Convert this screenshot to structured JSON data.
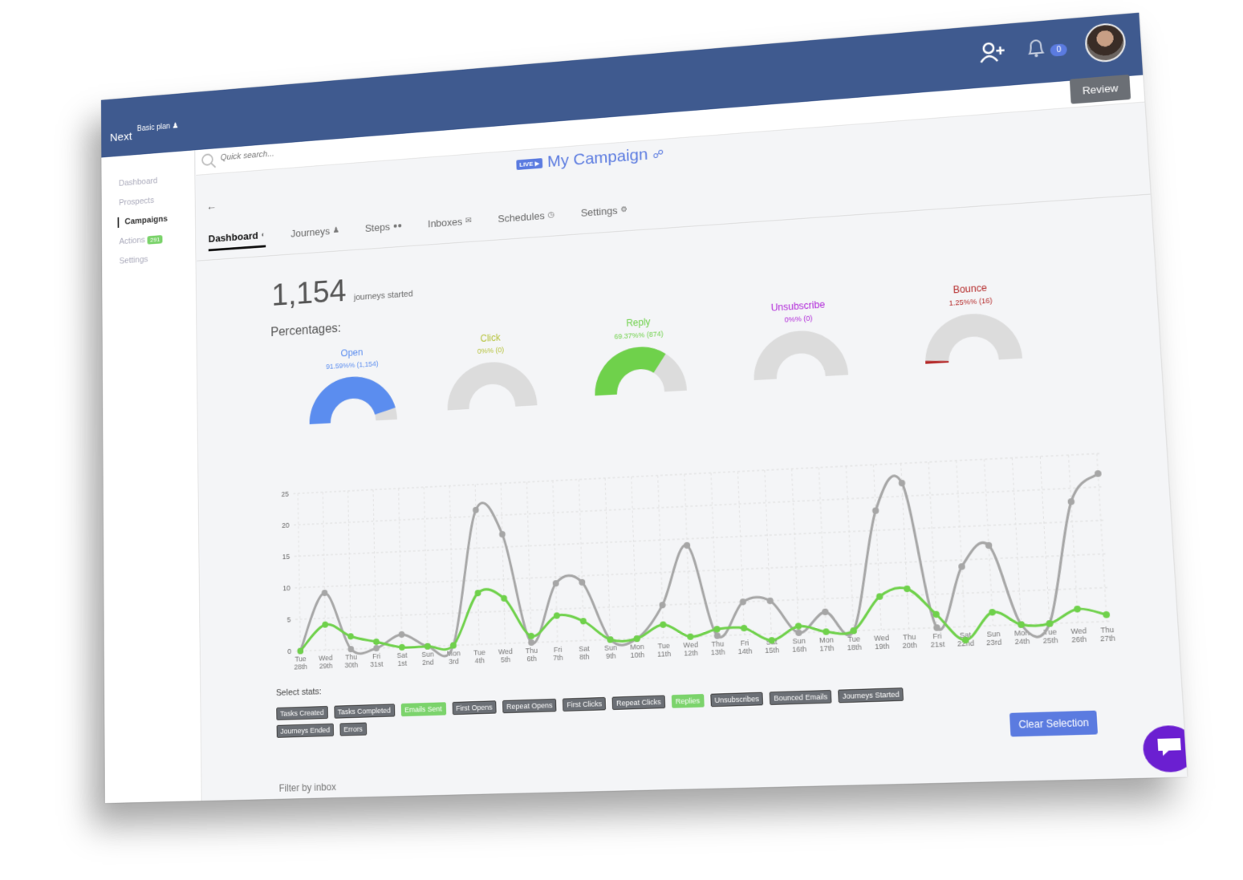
{
  "app": {
    "brand": "Next",
    "plan": "Basic plan",
    "notifications": "0"
  },
  "sidebar": {
    "items": [
      {
        "label": "Dashboard",
        "active": false
      },
      {
        "label": "Prospects",
        "active": false
      },
      {
        "label": "Campaigns",
        "active": true
      },
      {
        "label": "Actions",
        "active": false,
        "badge": "291"
      },
      {
        "label": "Settings",
        "active": false
      }
    ]
  },
  "search": {
    "placeholder": "Quick search..."
  },
  "toolbar": {
    "review_label": "Review"
  },
  "campaign": {
    "live_label": "LIVE",
    "title": "My Campaign"
  },
  "tabs": [
    {
      "label": "Dashboard",
      "icon": "gauge-icon",
      "active": true
    },
    {
      "label": "Journeys",
      "icon": "walker-icon",
      "active": false
    },
    {
      "label": "Steps",
      "icon": "footsteps-icon",
      "active": false
    },
    {
      "label": "Inboxes",
      "icon": "envelope-icon",
      "active": false
    },
    {
      "label": "Schedules",
      "icon": "clock-icon",
      "active": false
    },
    {
      "label": "Settings",
      "icon": "gear-icon",
      "active": false
    }
  ],
  "stats": {
    "journeys_count": "1,154",
    "journeys_label": "journeys started",
    "percentages_title": "Percentages:"
  },
  "gauges": [
    {
      "name": "Open",
      "value_text": "91.59%% (1,154)",
      "fraction": 0.9159,
      "color": "#5b8def"
    },
    {
      "name": "Click",
      "value_text": "0%% (0)",
      "fraction": 0,
      "color": "#b5c23a"
    },
    {
      "name": "Reply",
      "value_text": "69.37%% (874)",
      "fraction": 0.6937,
      "color": "#6fd14b"
    },
    {
      "name": "Unsubscribe",
      "value_text": "0%% (0)",
      "fraction": 0,
      "color": "#b026d8"
    },
    {
      "name": "Bounce",
      "value_text": "1.25%% (16)",
      "fraction": 0.0125,
      "color": "#b52a2a"
    }
  ],
  "chart_data": {
    "type": "line",
    "categories": [
      "Tue 28th",
      "Wed 29th",
      "Thu 30th",
      "Fri 31st",
      "Sat 1st",
      "Sun 2nd",
      "Mon 3rd",
      "Tue 4th",
      "Wed 5th",
      "Thu 6th",
      "Fri 7th",
      "Sat 8th",
      "Sun 9th",
      "Mon 10th",
      "Tue 11th",
      "Wed 12th",
      "Thu 13th",
      "Fri 14th",
      "Sat 15th",
      "Sun 16th",
      "Mon 17th",
      "Tue 18th",
      "Wed 19th",
      "Thu 20th",
      "Fri 21st",
      "Sat 22nd",
      "Sun 23rd",
      "Mon 24th",
      "Tue 25th",
      "Wed 26th",
      "Thu 27th"
    ],
    "ylim": [
      0,
      25
    ],
    "yticks": [
      0,
      5,
      10,
      15,
      20,
      25
    ],
    "grid": true,
    "series": [
      {
        "name": "",
        "color": "#a6a6a6",
        "values": [
          0,
          9,
          0,
          0,
          2,
          0,
          0,
          21,
          17,
          0,
          9,
          9,
          0,
          0,
          5,
          14,
          0,
          5,
          5,
          0,
          3,
          0,
          18,
          22,
          0,
          9,
          12,
          0,
          0,
          18,
          22
        ]
      },
      {
        "name": "",
        "color": "#6fd14b",
        "values": [
          0,
          4,
          2,
          1,
          0,
          0,
          0,
          8,
          7,
          1,
          4,
          3,
          0,
          0,
          2,
          0,
          1,
          1,
          -1,
          1,
          0,
          0,
          5,
          6,
          2,
          -2,
          2,
          0,
          0,
          2,
          1
        ]
      }
    ]
  },
  "select_stats": {
    "label": "Select stats:",
    "tags": [
      {
        "label": "Tasks Created",
        "on": false
      },
      {
        "label": "Tasks Completed",
        "on": false
      },
      {
        "label": "Emails Sent",
        "on": true
      },
      {
        "label": "First Opens",
        "on": false
      },
      {
        "label": "Repeat Opens",
        "on": false
      },
      {
        "label": "First Clicks",
        "on": false
      },
      {
        "label": "Repeat Clicks",
        "on": false
      },
      {
        "label": "Replies",
        "on": true
      },
      {
        "label": "Unsubscribes",
        "on": false
      },
      {
        "label": "Bounced Emails",
        "on": false
      },
      {
        "label": "Journeys Started",
        "on": false
      },
      {
        "label": "Journeys Ended",
        "on": false
      },
      {
        "label": "Errors",
        "on": false
      }
    ],
    "clear_label": "Clear Selection"
  },
  "filter": {
    "label": "Filter by inbox"
  }
}
